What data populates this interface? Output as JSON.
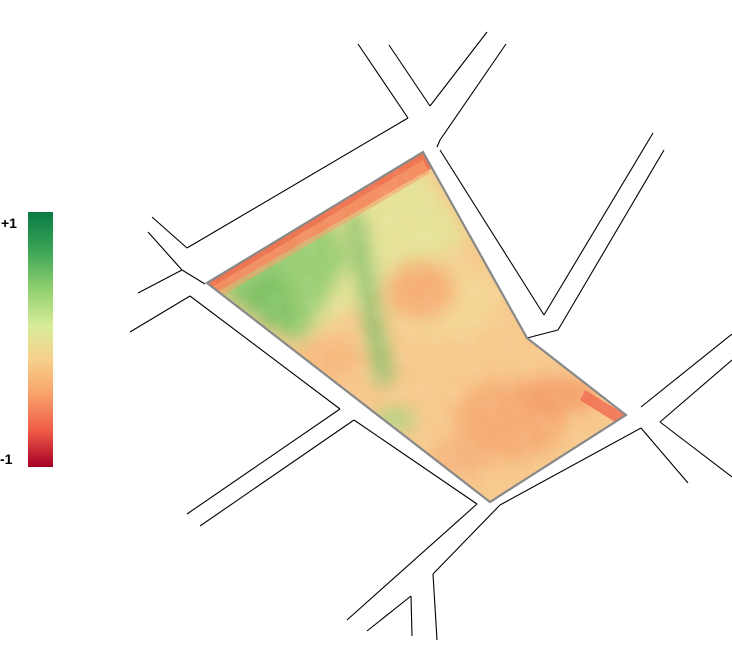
{
  "legend": {
    "max_label": "+1",
    "min_label": "-1",
    "colors": [
      "#0a7a43",
      "#3aa556",
      "#8fcf6e",
      "#d9ec9a",
      "#f6d08a",
      "#f8a06a",
      "#ef5a46",
      "#a50026"
    ]
  },
  "map": {
    "field_border_color": "#888888",
    "road_color": "#000000"
  }
}
